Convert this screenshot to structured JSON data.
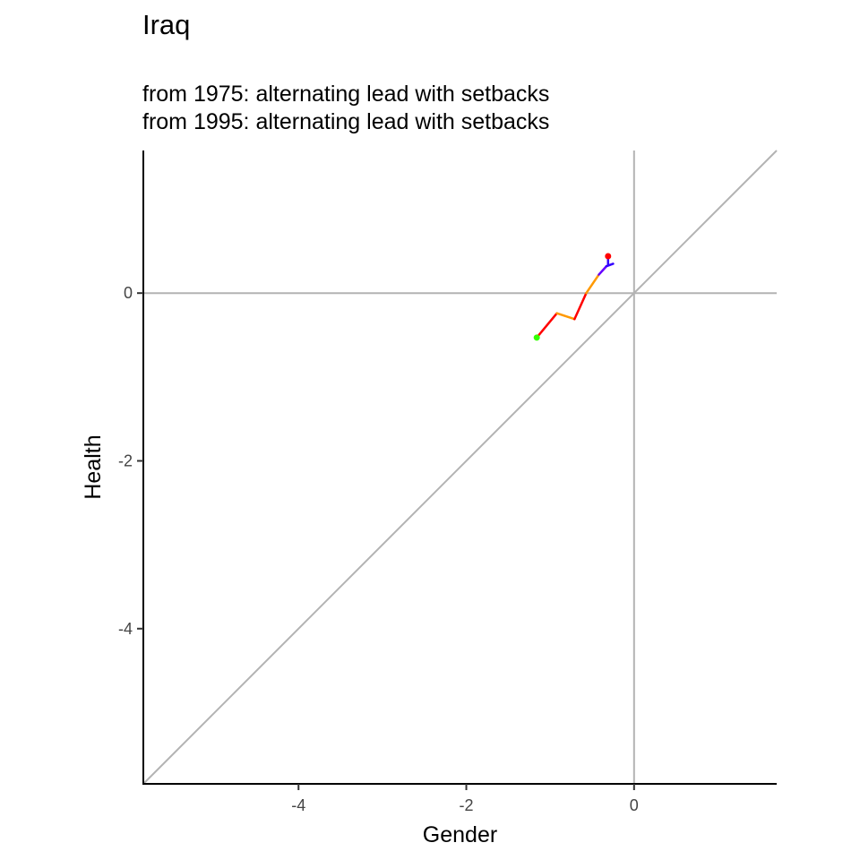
{
  "title": "Iraq",
  "subtitle_lines": [
    "from 1975:  alternating lead with setbacks",
    "from 1995:  alternating lead with setbacks"
  ],
  "chart_data": {
    "type": "line",
    "xlabel": "Gender",
    "ylabel": "Health",
    "xlim": [
      -5.85,
      1.7
    ],
    "ylim": [
      -5.85,
      1.7
    ],
    "x_ticks": [
      -4,
      -2,
      0
    ],
    "y_ticks": [
      0,
      -2,
      -4
    ],
    "reference_lines": {
      "hline_y": 0,
      "vline_x": 0,
      "diagonal": "y = x"
    },
    "grid": false,
    "path_segments": [
      {
        "color": "#ff0000",
        "points": [
          [
            -1.16,
            -0.53
          ],
          [
            -0.92,
            -0.24
          ]
        ]
      },
      {
        "color": "#ff9900",
        "points": [
          [
            -0.92,
            -0.24
          ],
          [
            -0.71,
            -0.31
          ]
        ]
      },
      {
        "color": "#ff0000",
        "points": [
          [
            -0.71,
            -0.31
          ],
          [
            -0.57,
            0.0
          ]
        ]
      },
      {
        "color": "#ff9900",
        "points": [
          [
            -0.57,
            0.0
          ],
          [
            -0.42,
            0.22
          ]
        ]
      },
      {
        "color": "#6600ff",
        "points": [
          [
            -0.42,
            0.22
          ],
          [
            -0.33,
            0.32
          ]
        ]
      },
      {
        "color": "#3300ff",
        "points": [
          [
            -0.33,
            0.32
          ],
          [
            -0.25,
            0.35
          ]
        ]
      },
      {
        "color": "#3300ff",
        "points": [
          [
            -0.31,
            0.34
          ],
          [
            -0.31,
            0.44
          ]
        ]
      }
    ],
    "start_point": {
      "x": -1.16,
      "y": -0.53,
      "color": "#33ff00"
    },
    "end_point": {
      "x": -0.31,
      "y": 0.44,
      "color": "#ff0000"
    }
  }
}
